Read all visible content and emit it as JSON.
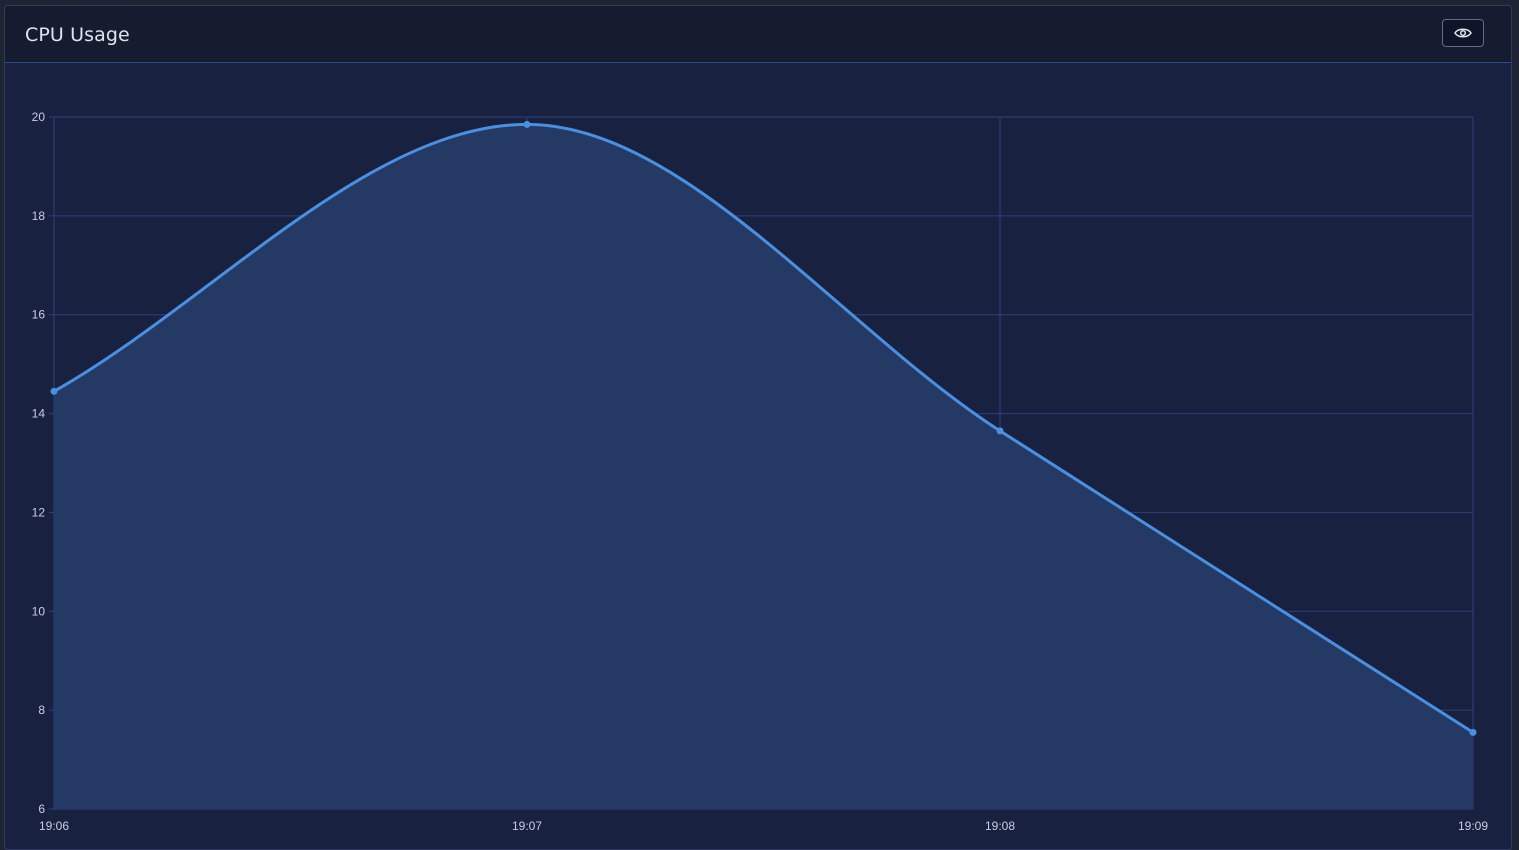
{
  "card": {
    "title": "CPU Usage",
    "toggle_icon": "eye-icon"
  },
  "colors": {
    "line": "#4a90e2",
    "fill": "#243a64",
    "grid": "#2e3f7a",
    "tick_text": "#c9cede"
  },
  "chart_data": {
    "type": "area",
    "title": "CPU Usage",
    "xlabel": "",
    "ylabel": "",
    "x": [
      "19:06",
      "19:07",
      "19:08",
      "19:09"
    ],
    "series": [
      {
        "values": [
          14.45,
          19.85,
          13.65,
          7.55
        ]
      }
    ],
    "ylim": [
      6,
      20
    ],
    "yticks": [
      6,
      8,
      10,
      12,
      14,
      16,
      18,
      20
    ],
    "grid": true,
    "smooth": true,
    "legend": "none"
  }
}
